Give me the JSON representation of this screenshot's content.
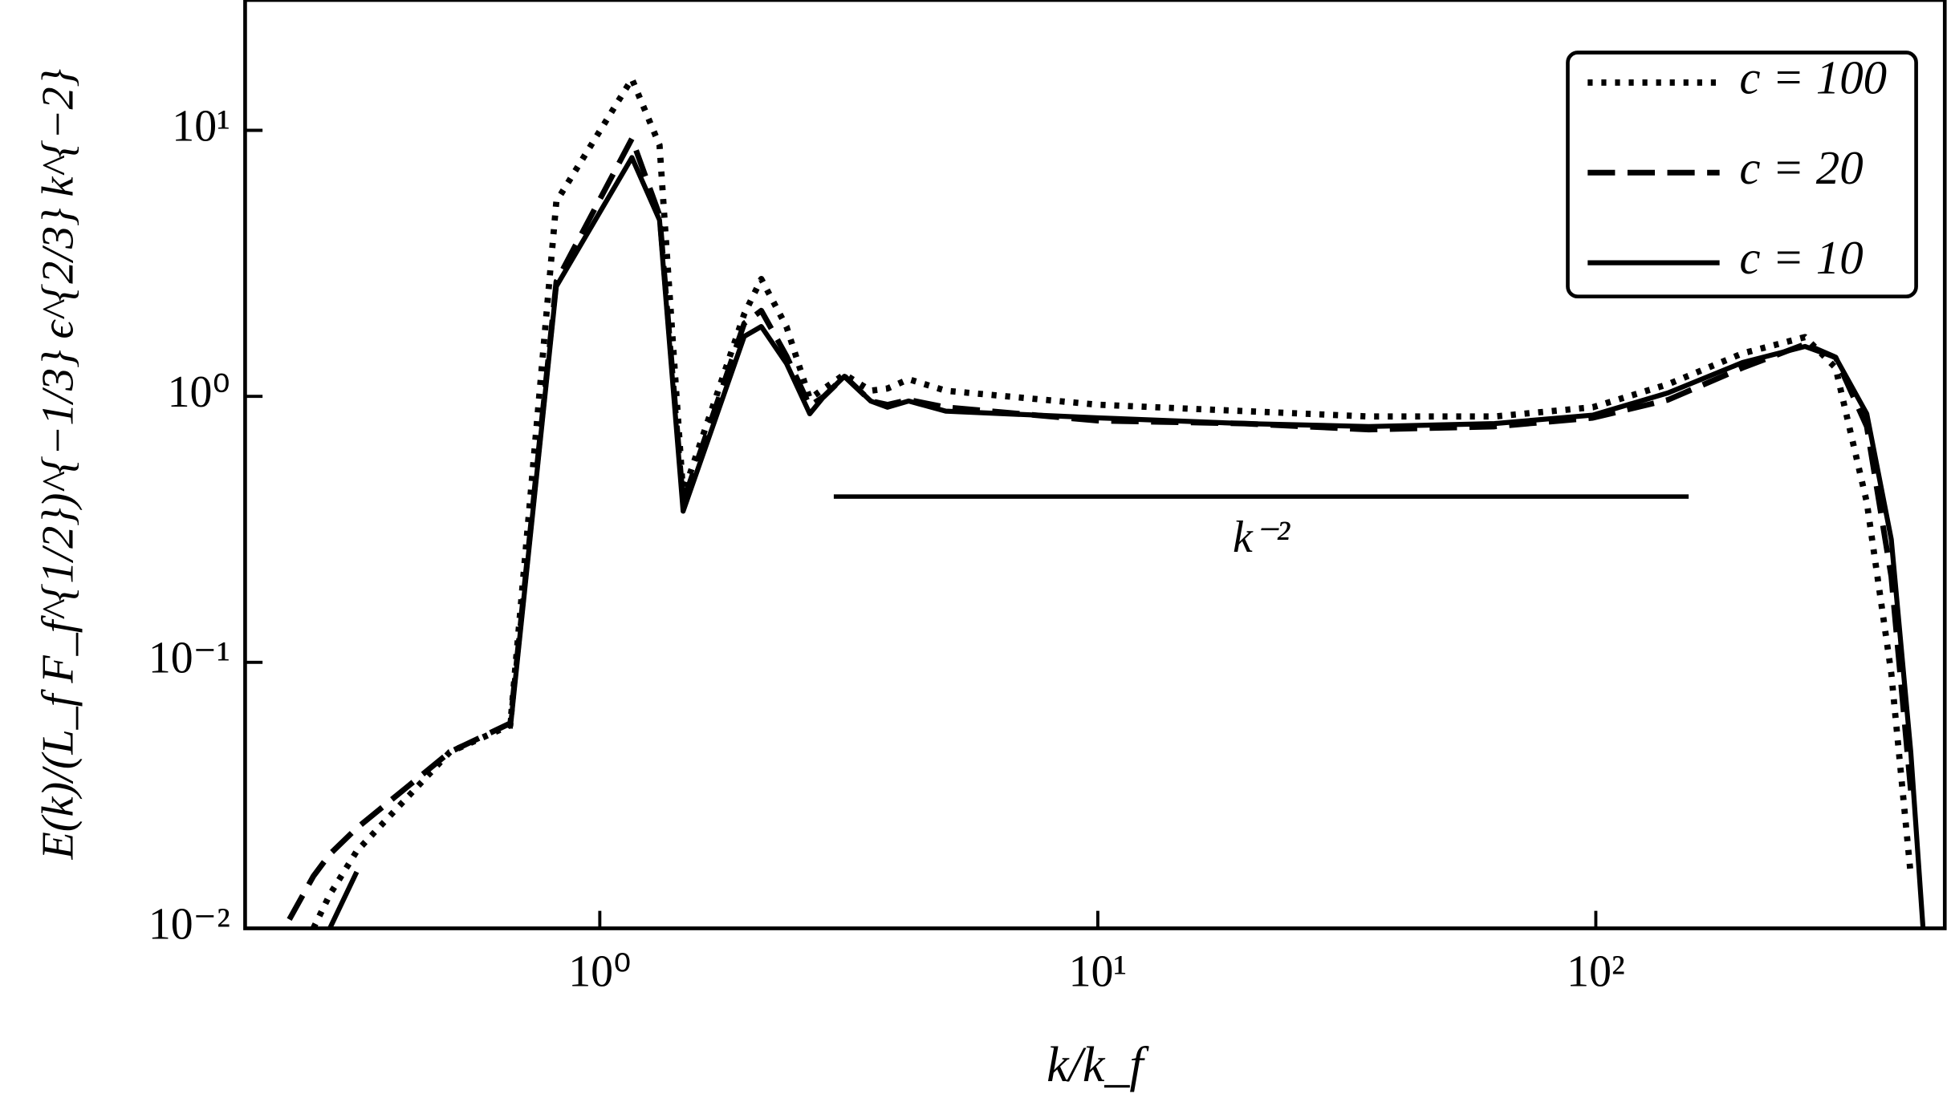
{
  "chart_data": {
    "type": "line",
    "xlabel": "k/k_f",
    "ylabel": "E(k)/(L_f F_f^{1/2})^{−1/3} ϵ^{2/3} k^{−2}",
    "log_x": true,
    "log_y": true,
    "xlim": [
      0.194,
      502
    ],
    "ylim": [
      0.01,
      30.9
    ],
    "xticks": [
      {
        "value": 1,
        "label": "10⁰"
      },
      {
        "value": 10,
        "label": "10¹"
      },
      {
        "value": 100,
        "label": "10²"
      }
    ],
    "yticks": [
      {
        "value": 0.01,
        "label": "10⁻²"
      },
      {
        "value": 0.1,
        "label": "10⁻¹"
      },
      {
        "value": 1,
        "label": "10⁰"
      },
      {
        "value": 10,
        "label": "10¹"
      }
    ],
    "legend": "upper right",
    "x": [
      0.238,
      0.266,
      0.287,
      0.325,
      0.5,
      0.661,
      0.818,
      1.16,
      1.318,
      1.47,
      1.95,
      2.11,
      2.37,
      2.64,
      2.82,
      3.1,
      3.5,
      3.78,
      4.17,
      4.95,
      10,
      19.7,
      35,
      62.6,
      98.6,
      139.6,
      197,
      263,
      303,
      350,
      392,
      429,
      454
    ],
    "series": [
      {
        "name": "c = 100",
        "color": "#000000",
        "linestyle": "dotted",
        "values": [
          null,
          0.01,
          0.0134,
          0.0195,
          0.046,
          0.058,
          5.4,
          15.6,
          8.8,
          0.43,
          2.04,
          2.76,
          1.83,
          0.98,
          1.07,
          1.21,
          1.05,
          1.07,
          1.16,
          1.05,
          0.93,
          0.88,
          0.84,
          0.84,
          0.91,
          1.11,
          1.45,
          1.67,
          1.28,
          0.4,
          0.091,
          0.0158,
          null
        ]
      },
      {
        "name": "c = 20",
        "color": "#000000",
        "linestyle": "dashed",
        "values": [
          0.0108,
          0.0157,
          0.019,
          0.0238,
          0.046,
          0.059,
          2.7,
          9.3,
          4.8,
          0.4,
          1.88,
          2.1,
          1.42,
          0.92,
          1.0,
          1.19,
          0.96,
          0.93,
          0.97,
          0.91,
          0.81,
          0.79,
          0.75,
          0.77,
          0.83,
          0.97,
          1.28,
          1.57,
          1.4,
          0.77,
          0.21,
          0.033,
          null
        ]
      },
      {
        "name": "c = 10",
        "color": "#000000",
        "linestyle": "solid",
        "values": [
          null,
          null,
          0.01,
          0.0163,
          null,
          0.0564,
          2.59,
          7.9,
          4.6,
          0.37,
          1.68,
          1.83,
          1.33,
          0.86,
          1.0,
          1.19,
          0.96,
          0.91,
          0.96,
          0.88,
          0.83,
          0.79,
          0.77,
          0.79,
          0.85,
          1.03,
          1.34,
          1.54,
          1.4,
          0.86,
          0.29,
          0.046,
          0.01
        ]
      }
    ],
    "annotations": [
      {
        "text": "k⁻²",
        "x0": 2.95,
        "x1": 153.6,
        "y": 0.42
      }
    ]
  }
}
